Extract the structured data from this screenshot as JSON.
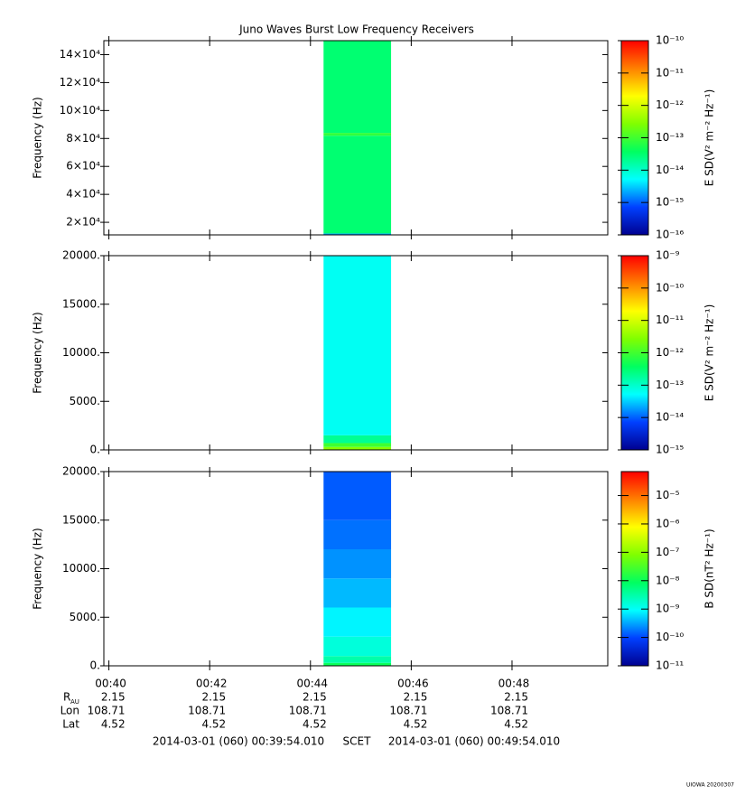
{
  "chart_data": [
    {
      "type": "spectrogram",
      "title": "Juno Waves Burst Low Frequency Receivers",
      "ylabel": "Frequency (Hz)",
      "colorbar_label": "E SD(V² m⁻² Hz⁻¹)",
      "xlim": [
        39.9,
        49.9
      ],
      "xticks": [
        40,
        42,
        44,
        46,
        48
      ],
      "ylim": [
        11000,
        150000
      ],
      "yticks": [
        {
          "value": 20000,
          "label": "2×10⁴"
        },
        {
          "value": 40000,
          "label": "4×10⁴"
        },
        {
          "value": 60000,
          "label": "6×10⁴"
        },
        {
          "value": 80000,
          "label": "8×10⁴"
        },
        {
          "value": 100000,
          "label": "10×10⁴"
        },
        {
          "value": 120000,
          "label": "12×10⁴"
        },
        {
          "value": 140000,
          "label": "14×10⁴"
        }
      ],
      "clim": [
        1e-16,
        1e-10
      ],
      "cticks": [
        {
          "value": 1e-16,
          "label": "10⁻¹⁶"
        },
        {
          "value": 1e-15,
          "label": "10⁻¹⁵"
        },
        {
          "value": 1e-14,
          "label": "10⁻¹⁴"
        },
        {
          "value": 1e-13,
          "label": "10⁻¹³"
        },
        {
          "value": 1e-12,
          "label": "10⁻¹²"
        },
        {
          "value": 1e-11,
          "label": "10⁻¹¹"
        },
        {
          "value": 1e-10,
          "label": "10⁻¹⁰"
        }
      ],
      "xbins": [
        44.26,
        45.6
      ],
      "ybins": [
        11000,
        12000,
        82000,
        84000,
        150000
      ],
      "values": [
        2e-15,
        3e-14,
        8e-14,
        3e-14
      ]
    },
    {
      "type": "spectrogram",
      "ylabel": "Frequency (Hz)",
      "colorbar_label": "E SD(V² m⁻² Hz⁻¹)",
      "xlim": [
        39.9,
        49.9
      ],
      "xticks": [
        40,
        42,
        44,
        46,
        48
      ],
      "ylim": [
        0,
        20000
      ],
      "yticks": [
        {
          "value": 0,
          "label": "0."
        },
        {
          "value": 5000,
          "label": "5000."
        },
        {
          "value": 10000,
          "label": "10000."
        },
        {
          "value": 15000,
          "label": "15000."
        },
        {
          "value": 20000,
          "label": "20000."
        }
      ],
      "clim": [
        1e-15,
        1e-09
      ],
      "cticks": [
        {
          "value": 1e-15,
          "label": "10⁻¹⁵"
        },
        {
          "value": 1e-14,
          "label": "10⁻¹⁴"
        },
        {
          "value": 1e-13,
          "label": "10⁻¹³"
        },
        {
          "value": 1e-12,
          "label": "10⁻¹²"
        },
        {
          "value": 1e-11,
          "label": "10⁻¹¹"
        },
        {
          "value": 1e-10,
          "label": "10⁻¹⁰"
        },
        {
          "value": 1e-09,
          "label": "10⁻⁹"
        }
      ],
      "xbins": [
        44.26,
        45.6
      ],
      "ybins": [
        0,
        300,
        700,
        1500,
        20000
      ],
      "values": [
        3e-12,
        1e-12,
        2e-13,
        6e-14
      ]
    },
    {
      "type": "spectrogram",
      "ylabel": "Frequency (Hz)",
      "colorbar_label": "B SD(nT² Hz⁻¹)",
      "xlim": [
        39.9,
        49.9
      ],
      "xticks": [
        {
          "value": 40,
          "label": "00:40"
        },
        {
          "value": 42,
          "label": "00:42"
        },
        {
          "value": 44,
          "label": "00:44"
        },
        {
          "value": 46,
          "label": "00:46"
        },
        {
          "value": 48,
          "label": "00:48"
        }
      ],
      "ylim": [
        0,
        20000
      ],
      "yticks": [
        {
          "value": 0,
          "label": "0."
        },
        {
          "value": 5000,
          "label": "5000."
        },
        {
          "value": 10000,
          "label": "10000."
        },
        {
          "value": 15000,
          "label": "15000."
        },
        {
          "value": 20000,
          "label": "20000."
        }
      ],
      "clim": [
        1e-11,
        7e-05
      ],
      "cticks": [
        {
          "value": 1e-11,
          "label": "10⁻¹¹"
        },
        {
          "value": 1e-10,
          "label": "10⁻¹⁰"
        },
        {
          "value": 1e-09,
          "label": "10⁻⁹"
        },
        {
          "value": 1e-08,
          "label": "10⁻⁸"
        },
        {
          "value": 1e-07,
          "label": "10⁻⁷"
        },
        {
          "value": 1e-06,
          "label": "10⁻⁶"
        },
        {
          "value": 1e-05,
          "label": "10⁻⁵"
        }
      ],
      "xbins": [
        44.26,
        45.6
      ],
      "ybins": [
        0,
        300,
        1000,
        3000,
        6000,
        9000,
        12000,
        15000,
        20000
      ],
      "values": [
        1e-08,
        3e-09,
        1.5e-09,
        8e-10,
        4e-10,
        2.5e-10,
        1.7e-10,
        1.3e-10
      ]
    }
  ],
  "colormap": [
    "#000090",
    "#0040ff",
    "#00ffff",
    "#00ff60",
    "#80ff00",
    "#ffff00",
    "#ff8000",
    "#ff0000"
  ],
  "ephemeris": {
    "rows": [
      {
        "label": "R",
        "subscript": "AU",
        "values": [
          2.15,
          2.15,
          2.15,
          2.15,
          2.15
        ]
      },
      {
        "label": "Lon",
        "values": [
          108.71,
          108.71,
          108.71,
          108.71,
          108.71
        ]
      },
      {
        "label": "Lat",
        "values": [
          4.52,
          4.52,
          4.52,
          4.52,
          4.52
        ]
      }
    ]
  },
  "footer": {
    "start": "2014-03-01 (060) 00:39:54.010",
    "frame": "SCET",
    "end": "2014-03-01 (060) 00:49:54.010",
    "credit": "UIOWA 20200307"
  }
}
